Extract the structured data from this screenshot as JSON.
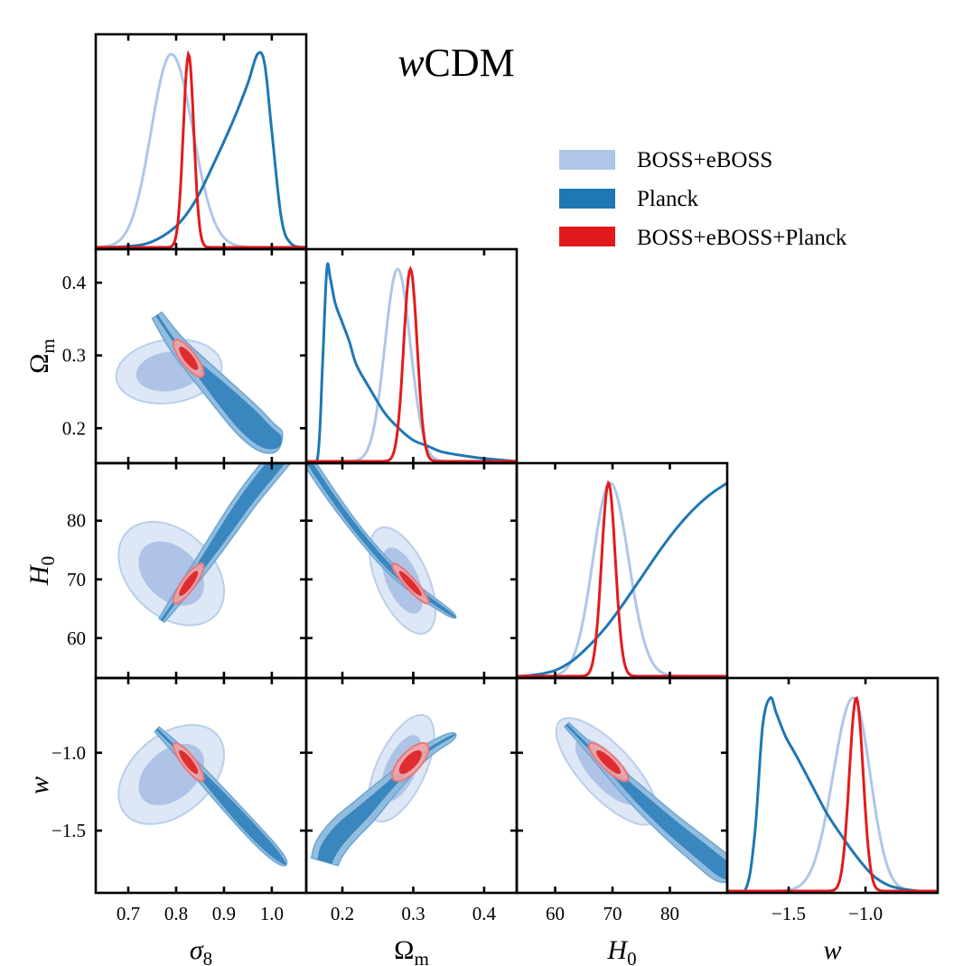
{
  "chart_data": {
    "type": "corner",
    "title": "wCDM",
    "title_italic_prefix": "w",
    "title_suffix": "CDM",
    "parameters": [
      {
        "key": "sigma8",
        "label": "σ",
        "sub": "8",
        "italic": true,
        "ticks": [
          0.7,
          0.8,
          0.9,
          1.0
        ],
        "tick_labels": [
          "0.7",
          "0.8",
          "0.9",
          "1.0"
        ],
        "range": [
          0.632,
          1.072
        ]
      },
      {
        "key": "Omega_m",
        "label": "Ω",
        "sub": "m",
        "italic": false,
        "ticks": [
          0.2,
          0.3,
          0.4
        ],
        "tick_labels": [
          "0.2",
          "0.3",
          "0.4"
        ],
        "range": [
          0.149,
          0.446
        ]
      },
      {
        "key": "H0",
        "label": "H",
        "sub": "0",
        "italic": true,
        "ticks": [
          60,
          70,
          80
        ],
        "tick_labels": [
          "60",
          "70",
          "80"
        ],
        "range": [
          53.3,
          90.0
        ]
      },
      {
        "key": "w",
        "label": "w",
        "sub": "",
        "italic": true,
        "ticks": [
          -1.5,
          -1.0
        ],
        "tick_labels": [
          "−1.5",
          "−1.0"
        ],
        "range": [
          -1.9,
          -0.53
        ]
      }
    ],
    "row_tick_labels": {
      "Omega_m": [
        "0.2",
        "0.3",
        "0.4"
      ],
      "H0": [
        "60",
        "70",
        "80"
      ],
      "w": [
        "−1.5",
        "−1.0"
      ]
    },
    "legend": {
      "placement": "top-right",
      "entries": [
        {
          "label": "BOSS+eBOSS",
          "color": "#aec7e8"
        },
        {
          "label": "Planck",
          "color": "#1f77b4"
        },
        {
          "label": "BOSS+eBOSS+Planck",
          "color": "#e31a1c"
        }
      ]
    },
    "series": [
      {
        "name": "BOSS+eBOSS",
        "line_color": "#aec7e8",
        "fill_inner": "#aec3e6",
        "fill_outer": "#dde7f5",
        "edge": "#b9cfeb",
        "marginals": {
          "sigma8": {
            "peak": 0.79,
            "sigma_left": 0.042,
            "sigma_right": 0.045
          },
          "Omega_m": {
            "peak": 0.278,
            "sigma_left": 0.018,
            "sigma_right": 0.018
          },
          "H0": {
            "peak": 69.6,
            "sigma_left": 3.0,
            "sigma_right": 3.2
          },
          "w": {
            "peak": -1.08,
            "sigma_left": 0.13,
            "sigma_right": 0.11
          }
        },
        "contours": [
          {
            "x": "sigma8",
            "y": "Omega_m",
            "center": [
              0.785,
              0.278
            ],
            "sx": 0.045,
            "sy": 0.018,
            "rho": 0.15
          },
          {
            "x": "sigma8",
            "y": "H0",
            "center": [
              0.79,
              71.0
            ],
            "sx": 0.045,
            "sy": 3.6,
            "rho": -0.35
          },
          {
            "x": "Omega_m",
            "y": "H0",
            "center": [
              0.285,
              69.8
            ],
            "sx": 0.019,
            "sy": 3.7,
            "rho": -0.55
          },
          {
            "x": "sigma8",
            "y": "w",
            "center": [
              0.79,
              -1.14
            ],
            "sx": 0.045,
            "sy": 0.13,
            "rho": 0.4
          },
          {
            "x": "Omega_m",
            "y": "w",
            "center": [
              0.283,
              -1.1
            ],
            "sx": 0.019,
            "sy": 0.14,
            "rho": 0.6
          },
          {
            "x": "H0",
            "y": "w",
            "center": [
              69.0,
              -1.12
            ],
            "sx": 3.6,
            "sy": 0.14,
            "rho": -0.75
          }
        ]
      },
      {
        "name": "Planck",
        "line_color": "#1f77b4",
        "fill_inner": "#3a87c0",
        "fill_outer": "#8db9dc",
        "edge": "#6aa6d2",
        "marginals_description": "broad, skewed; sigma8 peak ≈0.97, Omega_m peak ≈0.18, H0 rising to ≈90 at edge, w peak ≈−1.60",
        "marginal_curves": {
          "sigma8": {
            "x": [
              0.632,
              0.7,
              0.75,
              0.8,
              0.84,
              0.88,
              0.92,
              0.95,
              0.97,
              0.985,
              1.0,
              1.02,
              1.04,
              1.072
            ],
            "y": [
              0.0,
              0.005,
              0.03,
              0.11,
              0.24,
              0.44,
              0.66,
              0.85,
              1.0,
              0.95,
              0.6,
              0.15,
              0.02,
              0.0
            ]
          },
          "Omega_m": {
            "x": [
              0.149,
              0.165,
              0.172,
              0.178,
              0.183,
              0.19,
              0.2,
              0.21,
              0.22,
              0.24,
              0.26,
              0.28,
              0.3,
              0.32,
              0.34,
              0.37,
              0.4,
              0.446
            ],
            "y": [
              0.0,
              0.02,
              0.5,
              1.0,
              0.95,
              0.82,
              0.72,
              0.62,
              0.5,
              0.37,
              0.25,
              0.17,
              0.11,
              0.08,
              0.05,
              0.03,
              0.015,
              0.0
            ]
          },
          "H0": {
            "x": [
              53.3,
              56,
              60,
              63,
              66,
              69,
              72,
              75,
              78,
              81,
              84,
              87,
              90.0
            ],
            "y": [
              0.0,
              0.005,
              0.03,
              0.08,
              0.16,
              0.26,
              0.38,
              0.51,
              0.64,
              0.76,
              0.86,
              0.94,
              1.0
            ]
          },
          "w": {
            "x": [
              -1.9,
              -1.78,
              -1.72,
              -1.67,
              -1.62,
              -1.58,
              -1.52,
              -1.45,
              -1.35,
              -1.25,
              -1.15,
              -1.05,
              -0.95,
              -0.85,
              -0.75,
              -0.65,
              -0.53
            ],
            "y": [
              0.0,
              0.01,
              0.3,
              0.85,
              1.0,
              0.92,
              0.8,
              0.7,
              0.55,
              0.4,
              0.28,
              0.17,
              0.08,
              0.03,
              0.01,
              0.0,
              0.0
            ]
          }
        },
        "degeneracy_tracks": [
          {
            "x": "sigma8",
            "y": "Omega_m",
            "points": [
              [
                0.76,
                0.355
              ],
              [
                0.8,
                0.315
              ],
              [
                0.85,
                0.28
              ],
              [
                0.9,
                0.245
              ],
              [
                0.95,
                0.21
              ],
              [
                0.99,
                0.185
              ],
              [
                1.02,
                0.18
              ]
            ],
            "w_inner": [
              0.0,
              0.0,
              0.006,
              0.012,
              0.016,
              0.014,
              0.008
            ],
            "w_outer": [
              0.006,
              0.01,
              0.014,
              0.018,
              0.022,
              0.02,
              0.014
            ],
            "axis": "y"
          },
          {
            "x": "sigma8",
            "y": "H0",
            "points": [
              [
                0.77,
                63.0
              ],
              [
                0.8,
                66.5
              ],
              [
                0.85,
                72.0
              ],
              [
                0.9,
                78.0
              ],
              [
                0.95,
                84.0
              ],
              [
                1.0,
                89.0
              ],
              [
                1.04,
                93.0
              ]
            ],
            "w_inner": [
              0.0,
              0.0,
              0.006,
              0.01,
              0.012,
              0.013,
              0.013
            ],
            "w_outer": [
              0.004,
              0.009,
              0.014,
              0.018,
              0.02,
              0.021,
              0.022
            ],
            "axis": "x"
          },
          {
            "x": "Omega_m",
            "y": "H0",
            "points": [
              [
                0.15,
                90.5
              ],
              [
                0.18,
                85.0
              ],
              [
                0.21,
                80.0
              ],
              [
                0.24,
                75.5
              ],
              [
                0.27,
                71.5
              ],
              [
                0.3,
                68.5
              ],
              [
                0.33,
                66.0
              ],
              [
                0.36,
                63.5
              ]
            ],
            "w_inner": [
              0.002,
              0.002,
              0.002,
              0.002,
              0.002,
              0.002,
              0.001,
              0.0
            ],
            "w_outer": [
              0.006,
              0.006,
              0.005,
              0.005,
              0.005,
              0.005,
              0.004,
              0.002
            ],
            "axis": "x"
          },
          {
            "x": "sigma8",
            "y": "w",
            "points": [
              [
                0.76,
                -0.85
              ],
              [
                0.8,
                -0.97
              ],
              [
                0.85,
                -1.13
              ],
              [
                0.9,
                -1.3
              ],
              [
                0.95,
                -1.47
              ],
              [
                1.0,
                -1.63
              ],
              [
                1.03,
                -1.72
              ]
            ],
            "w_inner": [
              0.0,
              0.0,
              0.004,
              0.008,
              0.01,
              0.008,
              0.0
            ],
            "w_outer": [
              0.004,
              0.008,
              0.011,
              0.013,
              0.014,
              0.013,
              0.005
            ],
            "axis": "x"
          },
          {
            "x": "Omega_m",
            "y": "w",
            "points": [
              [
                0.175,
                -1.7
              ],
              [
                0.18,
                -1.62
              ],
              [
                0.2,
                -1.5
              ],
              [
                0.23,
                -1.38
              ],
              [
                0.26,
                -1.24
              ],
              [
                0.29,
                -1.11
              ],
              [
                0.32,
                -0.98
              ],
              [
                0.36,
                -0.88
              ]
            ],
            "w_inner": [
              0.04,
              0.05,
              0.05,
              0.04,
              0.02,
              0.01,
              0.0,
              0.0
            ],
            "w_outer": [
              0.08,
              0.09,
              0.09,
              0.08,
              0.06,
              0.04,
              0.03,
              0.02
            ],
            "axis": "y"
          },
          {
            "x": "H0",
            "y": "w",
            "points": [
              [
                62.0,
                -0.82
              ],
              [
                66.0,
                -0.97
              ],
              [
                70.0,
                -1.12
              ],
              [
                75.0,
                -1.3
              ],
              [
                80.0,
                -1.47
              ],
              [
                85.0,
                -1.62
              ],
              [
                91.0,
                -1.8
              ]
            ],
            "w_inner": [
              0.0,
              0.0,
              0.01,
              0.03,
              0.04,
              0.045,
              0.05
            ],
            "w_outer": [
              0.01,
              0.02,
              0.04,
              0.06,
              0.07,
              0.08,
              0.085
            ],
            "axis": "y"
          }
        ]
      },
      {
        "name": "BOSS+eBOSS+Planck",
        "line_color": "#e31a1c",
        "fill_inner": "#de2d30",
        "fill_outer": "#f2a5a7",
        "edge": "#e8787b",
        "marginals": {
          "sigma8": {
            "peak": 0.826,
            "sigma_left": 0.011,
            "sigma_right": 0.011
          },
          "Omega_m": {
            "peak": 0.296,
            "sigma_left": 0.0095,
            "sigma_right": 0.0095
          },
          "H0": {
            "peak": 69.3,
            "sigma_left": 1.2,
            "sigma_right": 1.2
          },
          "w": {
            "peak": -1.06,
            "sigma_left": 0.045,
            "sigma_right": 0.045
          }
        },
        "contours": [
          {
            "x": "sigma8",
            "y": "Omega_m",
            "center": [
              0.826,
              0.296
            ],
            "sx": 0.013,
            "sy": 0.0105,
            "rho": -0.8
          },
          {
            "x": "sigma8",
            "y": "H0",
            "center": [
              0.826,
              69.3
            ],
            "sx": 0.013,
            "sy": 1.4,
            "rho": 0.85
          },
          {
            "x": "Omega_m",
            "y": "H0",
            "center": [
              0.296,
              69.3
            ],
            "sx": 0.0105,
            "sy": 1.4,
            "rho": -0.92
          },
          {
            "x": "sigma8",
            "y": "w",
            "center": [
              0.826,
              -1.06
            ],
            "sx": 0.013,
            "sy": 0.05,
            "rho": -0.85
          },
          {
            "x": "Omega_m",
            "y": "w",
            "center": [
              0.296,
              -1.06
            ],
            "sx": 0.0105,
            "sy": 0.05,
            "rho": 0.7
          },
          {
            "x": "H0",
            "y": "w",
            "center": [
              69.3,
              -1.06
            ],
            "sx": 1.4,
            "sy": 0.05,
            "rho": -0.85
          }
        ]
      }
    ]
  }
}
